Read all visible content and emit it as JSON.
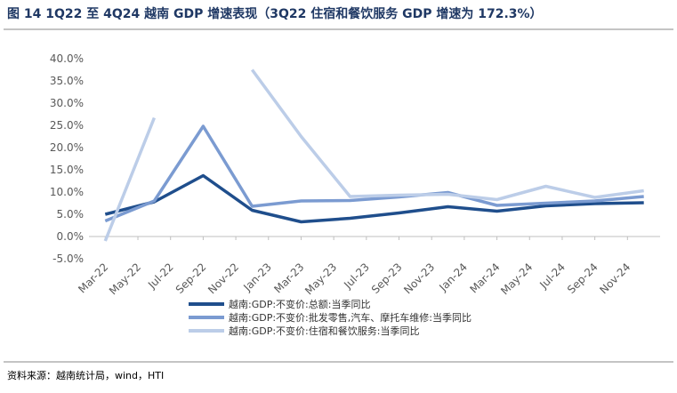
{
  "chart_data": {
    "type": "line",
    "title": "图 14 1Q22 至 4Q24 越南 GDP 增速表现（3Q22 住宿和餐饮服务 GDP 增速为 172.3%）",
    "source": "资料来源：越南统计局，wind，HTI",
    "x": [
      0,
      3,
      6,
      9,
      12,
      15,
      18,
      21,
      24,
      27,
      30,
      33
    ],
    "xlim": [
      -1,
      34
    ],
    "xticks": [
      {
        "value": 0,
        "label": "Mar-22"
      },
      {
        "value": 2,
        "label": "May-22"
      },
      {
        "value": 4,
        "label": "Jul-22"
      },
      {
        "value": 6,
        "label": "Sep-22"
      },
      {
        "value": 8,
        "label": "Nov-22"
      },
      {
        "value": 10,
        "label": "Jan-23"
      },
      {
        "value": 12,
        "label": "Mar-23"
      },
      {
        "value": 14,
        "label": "May-23"
      },
      {
        "value": 16,
        "label": "Jul-23"
      },
      {
        "value": 18,
        "label": "Sep-23"
      },
      {
        "value": 20,
        "label": "Nov-23"
      },
      {
        "value": 22,
        "label": "Jan-24"
      },
      {
        "value": 24,
        "label": "Mar-24"
      },
      {
        "value": 26,
        "label": "May-24"
      },
      {
        "value": 28,
        "label": "Jul-24"
      },
      {
        "value": 30,
        "label": "Sep-24"
      },
      {
        "value": 32,
        "label": "Nov-24"
      }
    ],
    "ylim": [
      -5,
      40
    ],
    "yticks": [
      {
        "value": -5,
        "label": "-5.0%"
      },
      {
        "value": 0,
        "label": "0.0%"
      },
      {
        "value": 5,
        "label": "5.0%"
      },
      {
        "value": 10,
        "label": "10.0%"
      },
      {
        "value": 15,
        "label": "15.0%"
      },
      {
        "value": 20,
        "label": "20.0%"
      },
      {
        "value": 25,
        "label": "25.0%"
      },
      {
        "value": 30,
        "label": "30.0%"
      },
      {
        "value": 35,
        "label": "35.0%"
      },
      {
        "value": 40,
        "label": "40.0%"
      }
    ],
    "series": [
      {
        "name": "越南:GDP:不变价:总额:当季同比",
        "color": "#1f4e8c",
        "values": [
          5.0,
          7.8,
          13.7,
          5.9,
          3.3,
          4.1,
          5.3,
          6.7,
          5.7,
          6.9,
          7.4,
          7.6
        ]
      },
      {
        "name": "越南:GDP:不变价:批发零售,汽车、摩托车维修:当季同比",
        "color": "#7b9bd1",
        "values": [
          3.5,
          8.0,
          24.8,
          6.8,
          8.0,
          8.1,
          8.9,
          9.9,
          7.0,
          7.5,
          8.0,
          9.0
        ]
      },
      {
        "name": "越南:GDP:不变价:住宿和餐饮服务:当季同比",
        "color": "#bccde8",
        "values": [
          -1.0,
          26.7,
          null,
          37.5,
          22.5,
          9.0,
          9.3,
          9.5,
          8.3,
          11.3,
          8.8,
          10.3
        ]
      }
    ]
  }
}
